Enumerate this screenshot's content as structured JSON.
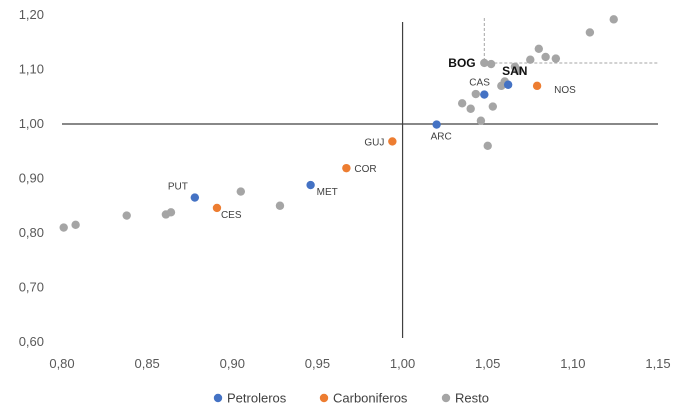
{
  "chart_data": {
    "type": "scatter",
    "title": "",
    "xlabel": "",
    "ylabel": "",
    "xlim": [
      0.8,
      1.15
    ],
    "ylim": [
      0.6,
      1.2
    ],
    "x_ticks": [
      "0,80",
      "0,85",
      "0,90",
      "0,95",
      "1,00",
      "1,05",
      "1,10",
      "1,15"
    ],
    "y_ticks": [
      "0,60",
      "0,70",
      "0,80",
      "0,90",
      "1,00",
      "1,10",
      "1,20"
    ],
    "reference_lines": {
      "x": 1.0,
      "y": 1.0
    },
    "highlight_dashed": {
      "x": 1.048,
      "y": 1.112
    },
    "legend_position": "bottom",
    "colors": {
      "Petroleros": "#4472c4",
      "Carboniferos": "#ed7d31",
      "Resto": "#a5a5a5"
    },
    "series": [
      {
        "name": "Petroleros",
        "points": [
          {
            "x": 0.878,
            "y": 0.865,
            "label": "PUT"
          },
          {
            "x": 0.946,
            "y": 0.888,
            "label": "MET"
          },
          {
            "x": 1.02,
            "y": 0.999,
            "label": "ARC"
          },
          {
            "x": 1.062,
            "y": 1.072,
            "label": "SAN"
          },
          {
            "x": 1.048,
            "y": 1.054,
            "label": "CAS"
          }
        ]
      },
      {
        "name": "Carboniferos",
        "points": [
          {
            "x": 0.891,
            "y": 0.846,
            "label": "CES"
          },
          {
            "x": 0.967,
            "y": 0.919,
            "label": "COR"
          },
          {
            "x": 0.994,
            "y": 0.968,
            "label": "GUJ"
          },
          {
            "x": 1.079,
            "y": 1.07,
            "label": "NOS"
          }
        ]
      },
      {
        "name": "Resto",
        "points": [
          {
            "x": 0.801,
            "y": 0.81
          },
          {
            "x": 0.808,
            "y": 0.815
          },
          {
            "x": 0.838,
            "y": 0.832
          },
          {
            "x": 0.861,
            "y": 0.834
          },
          {
            "x": 0.864,
            "y": 0.838
          },
          {
            "x": 0.905,
            "y": 0.876
          },
          {
            "x": 0.928,
            "y": 0.85
          },
          {
            "x": 1.035,
            "y": 1.038
          },
          {
            "x": 1.04,
            "y": 1.028
          },
          {
            "x": 1.043,
            "y": 1.055
          },
          {
            "x": 1.046,
            "y": 1.006
          },
          {
            "x": 1.05,
            "y": 0.96
          },
          {
            "x": 1.053,
            "y": 1.032
          },
          {
            "x": 1.058,
            "y": 1.07
          },
          {
            "x": 1.06,
            "y": 1.078
          },
          {
            "x": 1.048,
            "y": 1.112,
            "label": "BOG"
          },
          {
            "x": 1.052,
            "y": 1.11
          },
          {
            "x": 1.066,
            "y": 1.105
          },
          {
            "x": 1.068,
            "y": 1.098
          },
          {
            "x": 1.075,
            "y": 1.118
          },
          {
            "x": 1.08,
            "y": 1.138
          },
          {
            "x": 1.084,
            "y": 1.123
          },
          {
            "x": 1.09,
            "y": 1.12
          },
          {
            "x": 1.11,
            "y": 1.168
          },
          {
            "x": 1.124,
            "y": 1.192
          }
        ]
      }
    ]
  }
}
